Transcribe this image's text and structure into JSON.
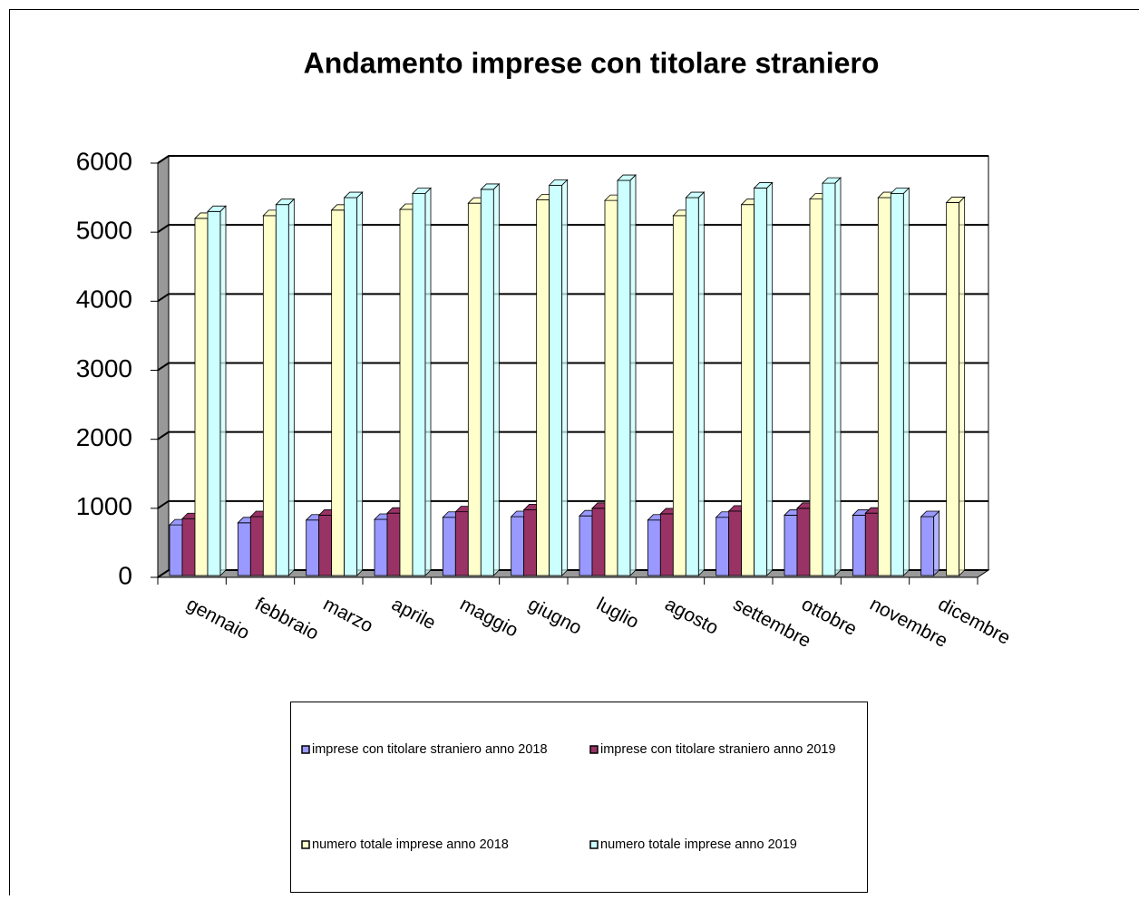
{
  "chart_data": {
    "type": "bar3d",
    "title": "Andamento imprese con titolare straniero",
    "categories": [
      "gennaio",
      "febbraio",
      "marzo",
      "aprile",
      "maggio",
      "giugno",
      "luglio",
      "agosto",
      "settembre",
      "ottobre",
      "novembre",
      "dicembre"
    ],
    "series": [
      {
        "name": "imprese con titolare straniero anno 2018",
        "color": "#9999ff",
        "values": [
          760,
          790,
          830,
          840,
          870,
          880,
          890,
          830,
          870,
          900,
          900,
          880
        ]
      },
      {
        "name": "imprese con titolare straniero anno 2019",
        "color": "#993366",
        "values": [
          850,
          880,
          900,
          930,
          950,
          980,
          1000,
          920,
          960,
          1000,
          930,
          null
        ]
      },
      {
        "name": "numero totale imprese anno 2018",
        "color": "#ffffcc",
        "values": [
          5200,
          5240,
          5320,
          5330,
          5420,
          5470,
          5460,
          5240,
          5400,
          5480,
          5500,
          5430
        ]
      },
      {
        "name": "numero totale imprese anno 2019",
        "color": "#ccffff",
        "values": [
          5300,
          5400,
          5500,
          5560,
          5620,
          5680,
          5750,
          5500,
          5640,
          5710,
          5560,
          null
        ]
      }
    ],
    "ylim": [
      0,
      6000
    ],
    "yticks": [
      0,
      1000,
      2000,
      3000,
      4000,
      5000,
      6000
    ],
    "grid": true,
    "legend": "bottom"
  }
}
